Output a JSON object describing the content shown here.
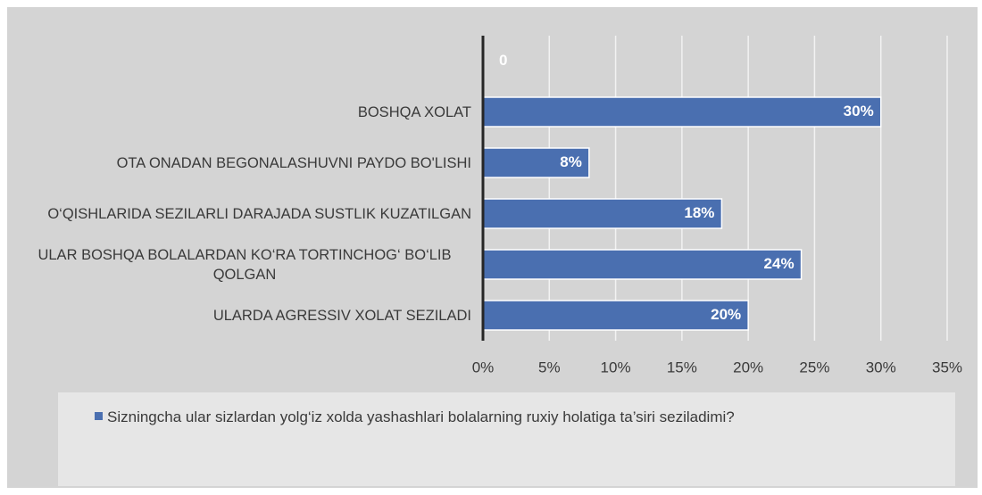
{
  "chart_data": {
    "type": "hbar",
    "categories": [
      null,
      "BOSHQA XOLAT",
      "OTA ONADAN BEGONALASHUVNI PAYDO BO'LISHI",
      "O‘QISHLARIDA SEZILARLI DARAJADA SUSTLIK KUZATILGAN",
      "ULAR BOSHQA BOLALARDAN KO‘RA TORTINCHOG‘ BO‘LIB QOLGAN",
      "ULARDA AGRESSIV XOLAT SEZILADI"
    ],
    "series": [
      {
        "name": "Sizningcha ular sizlardan yolg‘iz xolda yashashlari bolalarning ruxiy holatiga ta’siri seziladimi?",
        "color": "#4a6fb0",
        "values": [
          0,
          30,
          8,
          18,
          24,
          20
        ],
        "value_labels": [
          "0",
          "30%",
          "8%",
          "18%",
          "24%",
          "20%"
        ]
      }
    ],
    "xlim": [
      0,
      35
    ],
    "xticks": [
      {
        "value": 0,
        "label": "0%"
      },
      {
        "value": 5,
        "label": "5%"
      },
      {
        "value": 10,
        "label": "10%"
      },
      {
        "value": 15,
        "label": "15%"
      },
      {
        "value": 20,
        "label": "20%"
      },
      {
        "value": 25,
        "label": "25%"
      },
      {
        "value": 30,
        "label": "30%"
      },
      {
        "value": 35,
        "label": "35%"
      }
    ],
    "grid": true,
    "legend": "bottom"
  }
}
